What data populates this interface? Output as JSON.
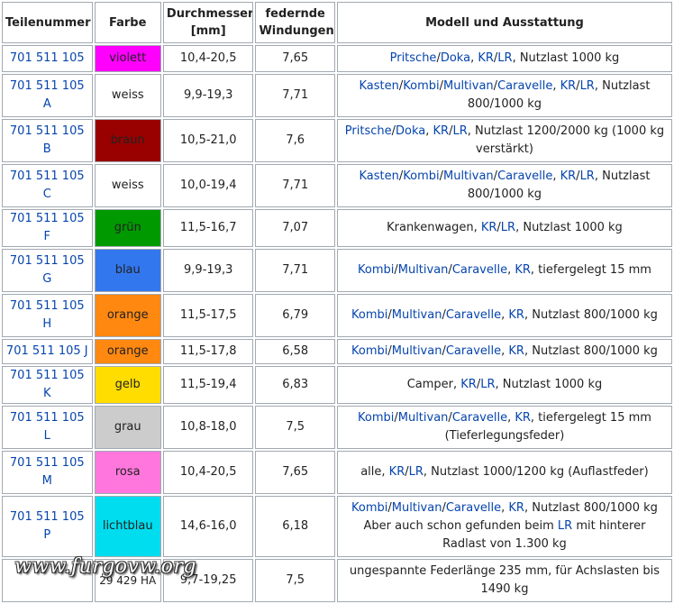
{
  "headers": [
    "Teilenummer",
    "Farbe",
    "Durchmesser [mm]",
    "federnde Windungen",
    "Modell und Ausstattung"
  ],
  "watermark": "www.furgovw.org",
  "rows": [
    {
      "part": "701 511 105",
      "color": "violett",
      "swatch": "#ff00ff",
      "text_color": "#222222",
      "diameter": "10,4-20,5",
      "windings": "7,65",
      "model": [
        {
          "t": "Pritsche",
          "l": true
        },
        {
          "t": "/"
        },
        {
          "t": "Doka",
          "l": true
        },
        {
          "t": ", "
        },
        {
          "t": "KR",
          "l": true
        },
        {
          "t": "/"
        },
        {
          "t": "LR",
          "l": true
        },
        {
          "t": ", Nutzlast 1000 kg"
        }
      ]
    },
    {
      "part": "701 511 105 A",
      "color": "weiss",
      "swatch": "#ffffff",
      "text_color": "#222222",
      "diameter": "9,9-19,3",
      "windings": "7,71",
      "model": [
        {
          "t": "Kasten",
          "l": true
        },
        {
          "t": "/"
        },
        {
          "t": "Kombi",
          "l": true
        },
        {
          "t": "/"
        },
        {
          "t": "Multivan",
          "l": true
        },
        {
          "t": "/"
        },
        {
          "t": "Caravelle",
          "l": true
        },
        {
          "t": ", "
        },
        {
          "t": "KR",
          "l": true
        },
        {
          "t": "/"
        },
        {
          "t": "LR",
          "l": true
        },
        {
          "t": ", Nutzlast 800/1000 kg"
        }
      ]
    },
    {
      "part": "701 511 105 B",
      "color": "braun",
      "swatch": "#990000",
      "text_color": "#222222",
      "diameter": "10,5-21,0",
      "windings": "7,6",
      "model": [
        {
          "t": "Pritsche",
          "l": true
        },
        {
          "t": "/"
        },
        {
          "t": "Doka",
          "l": true
        },
        {
          "t": ", "
        },
        {
          "t": "KR",
          "l": true
        },
        {
          "t": "/"
        },
        {
          "t": "LR",
          "l": true
        },
        {
          "t": ", Nutzlast 1200/2000 kg (1000 kg verstärkt)"
        }
      ]
    },
    {
      "part": "701 511 105 C",
      "color": "weiss",
      "swatch": "#ffffff",
      "text_color": "#222222",
      "diameter": "10,0-19,4",
      "windings": "7,71",
      "model": [
        {
          "t": "Kasten",
          "l": true
        },
        {
          "t": "/"
        },
        {
          "t": "Kombi",
          "l": true
        },
        {
          "t": "/"
        },
        {
          "t": "Multivan",
          "l": true
        },
        {
          "t": "/"
        },
        {
          "t": "Caravelle",
          "l": true
        },
        {
          "t": ", "
        },
        {
          "t": "KR",
          "l": true
        },
        {
          "t": "/"
        },
        {
          "t": "LR",
          "l": true
        },
        {
          "t": ", Nutzlast 800/1000 kg"
        }
      ]
    },
    {
      "part": "701 511 105 F",
      "color": "grün",
      "swatch": "#009900",
      "text_color": "#222222",
      "diameter": "11,5-16,7",
      "windings": "7,07",
      "model": [
        {
          "t": "Krankenwagen, "
        },
        {
          "t": "KR",
          "l": true
        },
        {
          "t": "/"
        },
        {
          "t": "LR",
          "l": true
        },
        {
          "t": ", Nutzlast 1000 kg"
        }
      ]
    },
    {
      "part": "701 511 105 G",
      "color": "blau",
      "swatch": "#3377ee",
      "text_color": "#222222",
      "diameter": "9,9-19,3",
      "windings": "7,71",
      "model": [
        {
          "t": "Kombi",
          "l": true
        },
        {
          "t": "/"
        },
        {
          "t": "Multivan",
          "l": true
        },
        {
          "t": "/"
        },
        {
          "t": "Caravelle",
          "l": true
        },
        {
          "t": ", "
        },
        {
          "t": "KR",
          "l": true
        },
        {
          "t": ", tiefergelegt 15 mm"
        }
      ]
    },
    {
      "part": "701 511 105 H",
      "color": "orange",
      "swatch": "#ff8811",
      "text_color": "#222222",
      "diameter": "11,5-17,5",
      "windings": "6,79",
      "model": [
        {
          "t": "Kombi",
          "l": true
        },
        {
          "t": "/"
        },
        {
          "t": "Multivan",
          "l": true
        },
        {
          "t": "/"
        },
        {
          "t": "Caravelle",
          "l": true
        },
        {
          "t": ", "
        },
        {
          "t": "KR",
          "l": true
        },
        {
          "t": ", Nutzlast 800/1000 kg"
        }
      ]
    },
    {
      "part": "701 511 105 J",
      "color": "orange",
      "swatch": "#ff8811",
      "text_color": "#222222",
      "diameter": "11,5-17,8",
      "windings": "6,58",
      "model": [
        {
          "t": "Kombi",
          "l": true
        },
        {
          "t": "/"
        },
        {
          "t": "Multivan",
          "l": true
        },
        {
          "t": "/"
        },
        {
          "t": "Caravelle",
          "l": true
        },
        {
          "t": ", "
        },
        {
          "t": "KR",
          "l": true
        },
        {
          "t": ", Nutzlast 800/1000 kg"
        }
      ]
    },
    {
      "part": "701 511 105 K",
      "color": "gelb",
      "swatch": "#ffdd00",
      "text_color": "#222222",
      "diameter": "11,5-19,4",
      "windings": "6,83",
      "model": [
        {
          "t": "Camper, "
        },
        {
          "t": "KR",
          "l": true
        },
        {
          "t": "/"
        },
        {
          "t": "LR",
          "l": true
        },
        {
          "t": ", Nutzlast 1000 kg"
        }
      ]
    },
    {
      "part": "701 511 105 L",
      "color": "grau",
      "swatch": "#cccccc",
      "text_color": "#222222",
      "diameter": "10,8-18,0",
      "windings": "7,5",
      "model": [
        {
          "t": "Kombi",
          "l": true
        },
        {
          "t": "/"
        },
        {
          "t": "Multivan",
          "l": true
        },
        {
          "t": "/"
        },
        {
          "t": "Caravelle",
          "l": true
        },
        {
          "t": ", "
        },
        {
          "t": "KR",
          "l": true
        },
        {
          "t": ", tiefergelegt 15 mm (Tieferlegungsfeder)"
        }
      ]
    },
    {
      "part": "701 511 105 M",
      "color": "rosa",
      "swatch": "#ff77dd",
      "text_color": "#222222",
      "diameter": "10,4-20,5",
      "windings": "7,65",
      "model": [
        {
          "t": "alle, "
        },
        {
          "t": "KR",
          "l": true
        },
        {
          "t": "/"
        },
        {
          "t": "LR",
          "l": true
        },
        {
          "t": ", Nutzlast 1000/1200 kg (Auflastfeder)"
        }
      ]
    },
    {
      "part": "701 511 105 P",
      "color": "lichtblau",
      "swatch": "#00ddee",
      "text_color": "#222222",
      "diameter": "14,6-16,0",
      "windings": "6,18",
      "model": [
        {
          "t": "Kombi",
          "l": true
        },
        {
          "t": "/"
        },
        {
          "t": "Multivan",
          "l": true
        },
        {
          "t": "/"
        },
        {
          "t": "Caravelle",
          "l": true
        },
        {
          "t": ", "
        },
        {
          "t": "KR",
          "l": true
        },
        {
          "t": ", Nutzlast 800/1000 kg Aber auch schon gefunden beim "
        },
        {
          "t": "LR",
          "l": true
        },
        {
          "t": " mit hinterer Radlast von 1.300 kg"
        }
      ]
    },
    {
      "part": "",
      "color": "29 429 HA",
      "swatch": "#ffffff",
      "text_color": "#222222",
      "diameter": "9,7-19,25",
      "windings": "7,5",
      "model": [
        {
          "t": "ungespannte Federlänge 235 mm, für Achslasten bis 1490 kg"
        }
      ]
    }
  ]
}
